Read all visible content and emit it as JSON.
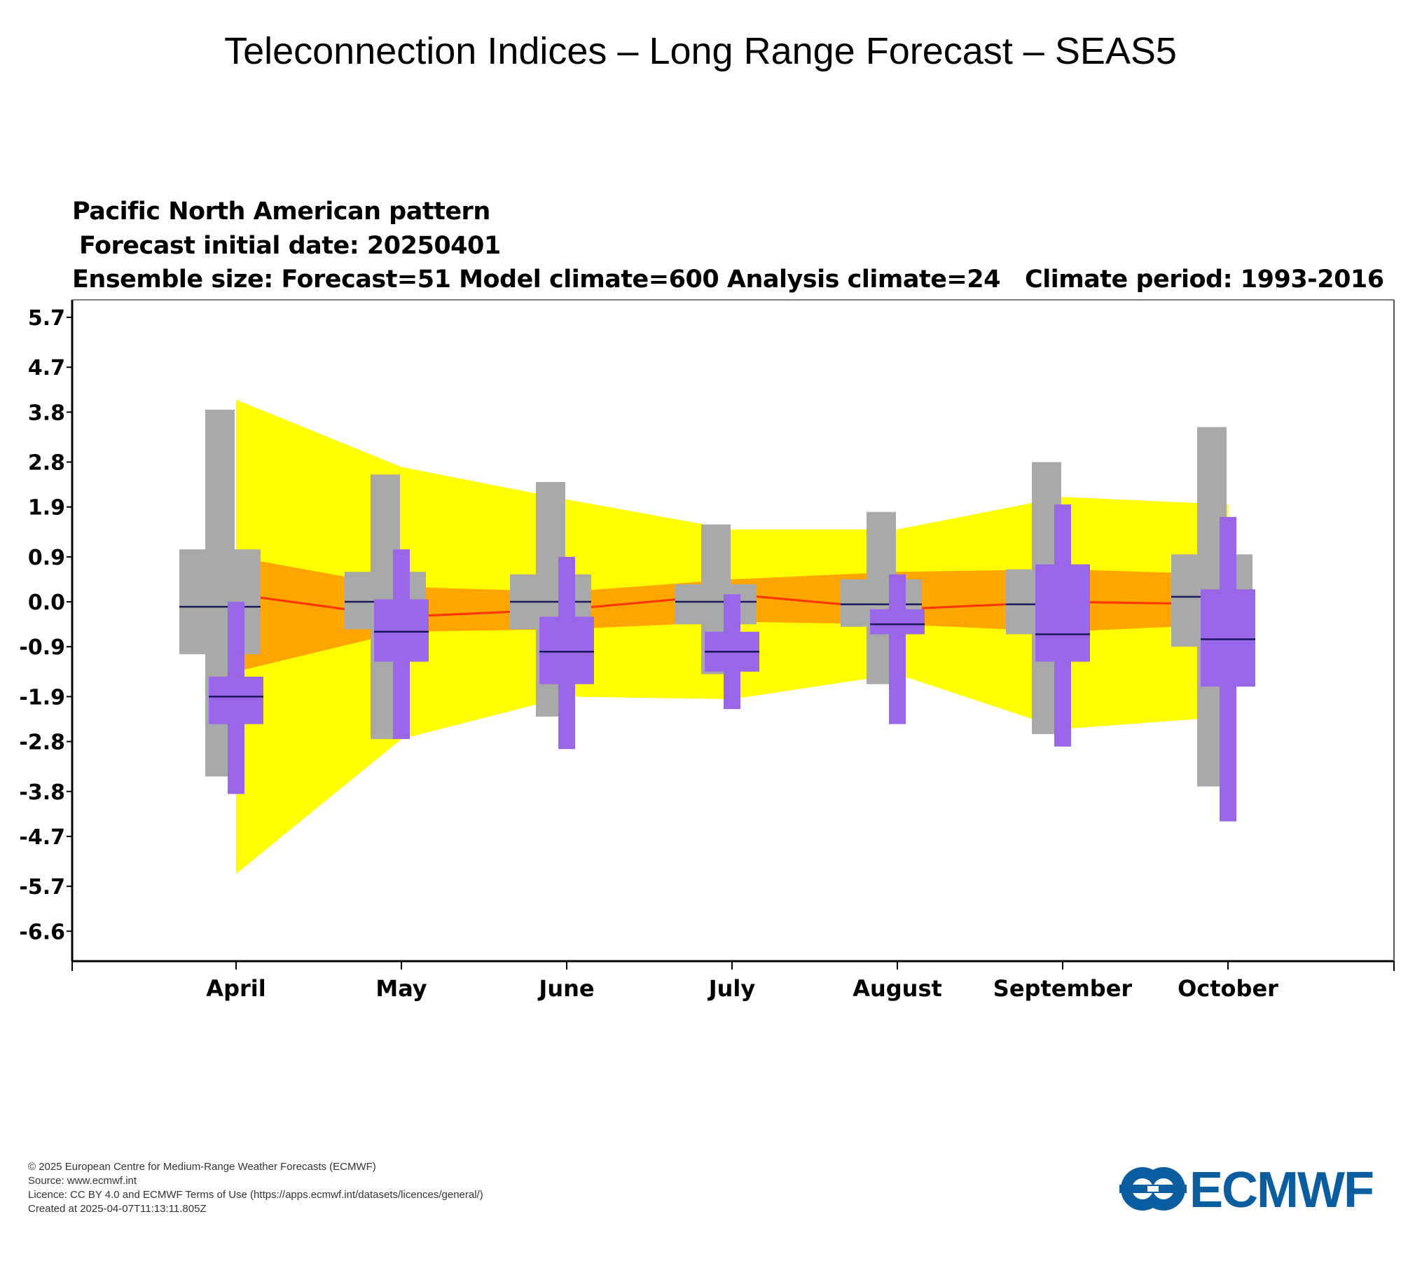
{
  "page_title": "Teleconnection Indices – Long Range Forecast – SEAS5",
  "subtitle": {
    "line1": "Pacific North American pattern",
    "line2": "Forecast initial date: 20250401",
    "line3": "Ensemble size: Forecast=51 Model climate=600 Analysis climate=24   Climate period: 1993-2016"
  },
  "chart_data": {
    "type": "box",
    "title": "Pacific North American pattern",
    "y_ticks": [
      "5.7",
      "4.7",
      "3.8",
      "2.8",
      "1.9",
      "0.9",
      "0.0",
      "-0.9",
      "-1.9",
      "-2.8",
      "-3.8",
      "-4.7",
      "-5.7",
      "-6.6"
    ],
    "y_tick_values": [
      5.7,
      4.7,
      3.8,
      2.8,
      1.9,
      0.9,
      0.0,
      -0.9,
      -1.9,
      -2.8,
      -3.8,
      -4.7,
      -5.7,
      -6.6
    ],
    "ylim": [
      -7.2,
      6.05
    ],
    "categories": [
      "April",
      "May",
      "June",
      "July",
      "August",
      "September",
      "October"
    ],
    "analysis_climate_percentile_band": {
      "upper": [
        4.05,
        2.7,
        2.05,
        1.45,
        1.45,
        2.1,
        1.95
      ],
      "lower": [
        -5.45,
        -2.75,
        -1.9,
        -1.95,
        -1.45,
        -2.55,
        -2.3
      ]
    },
    "analysis_climate_tercile_band": {
      "upper": [
        0.9,
        0.3,
        0.2,
        0.45,
        0.6,
        0.65,
        0.55
      ],
      "lower": [
        -1.4,
        -0.6,
        -0.55,
        -0.4,
        -0.45,
        -0.6,
        -0.45
      ]
    },
    "analysis_climate_median": [
      0.15,
      -0.3,
      -0.15,
      0.15,
      -0.15,
      0.0,
      -0.05
    ],
    "model_climate": [
      {
        "max": 3.85,
        "q_high": 1.05,
        "median": -0.1,
        "q_low": -1.05,
        "min": -3.5
      },
      {
        "max": 2.55,
        "q_high": 0.6,
        "median": 0.0,
        "q_low": -0.55,
        "min": -2.75
      },
      {
        "max": 2.4,
        "q_high": 0.55,
        "median": 0.0,
        "q_low": -0.55,
        "min": -2.3
      },
      {
        "max": 1.55,
        "q_high": 0.35,
        "median": 0.0,
        "q_low": -0.45,
        "min": -1.45
      },
      {
        "max": 1.8,
        "q_high": 0.45,
        "median": -0.05,
        "q_low": -0.5,
        "min": -1.65
      },
      {
        "max": 2.8,
        "q_high": 0.65,
        "median": -0.05,
        "q_low": -0.65,
        "min": -2.65
      },
      {
        "max": 3.5,
        "q_high": 0.95,
        "median": 0.1,
        "q_low": -0.9,
        "min": -3.7
      }
    ],
    "forecast": [
      {
        "max": 0.0,
        "q_high": -1.5,
        "median": -1.9,
        "q_low": -2.45,
        "min": -3.85
      },
      {
        "max": 1.05,
        "q_high": 0.05,
        "median": -0.6,
        "q_low": -1.2,
        "min": -2.75
      },
      {
        "max": 0.9,
        "q_high": -0.3,
        "median": -1.0,
        "q_low": -1.65,
        "min": -2.95
      },
      {
        "max": 0.15,
        "q_high": -0.6,
        "median": -1.0,
        "q_low": -1.4,
        "min": -2.15
      },
      {
        "max": 0.55,
        "q_high": -0.15,
        "median": -0.45,
        "q_low": -0.65,
        "min": -2.45
      },
      {
        "max": 1.95,
        "q_high": 0.75,
        "median": -0.65,
        "q_low": -1.2,
        "min": -2.9
      },
      {
        "max": 1.7,
        "q_high": 0.25,
        "median": -0.75,
        "q_low": -1.7,
        "min": -4.4
      }
    ],
    "colors": {
      "percentile_band": "#ffff00",
      "tercile_band": "#ffa500",
      "median_line": "#ff3300",
      "model_climate": "#a9a9a9",
      "forecast": "#9966e8",
      "median_tick": "#1a1a5e",
      "axis": "#000000"
    }
  },
  "footer": {
    "line1": "© 2025 European Centre for Medium-Range Weather Forecasts (ECMWF)",
    "line2": "Source: www.ecmwf.int",
    "line3": "Licence: CC BY 4.0 and ECMWF Terms of Use (https://apps.ecmwf.int/datasets/licences/general/)",
    "line4": "Created at 2025-04-07T11:13:11.805Z"
  },
  "logo": {
    "text": "ECMWF",
    "color": "#0a5d9e"
  }
}
